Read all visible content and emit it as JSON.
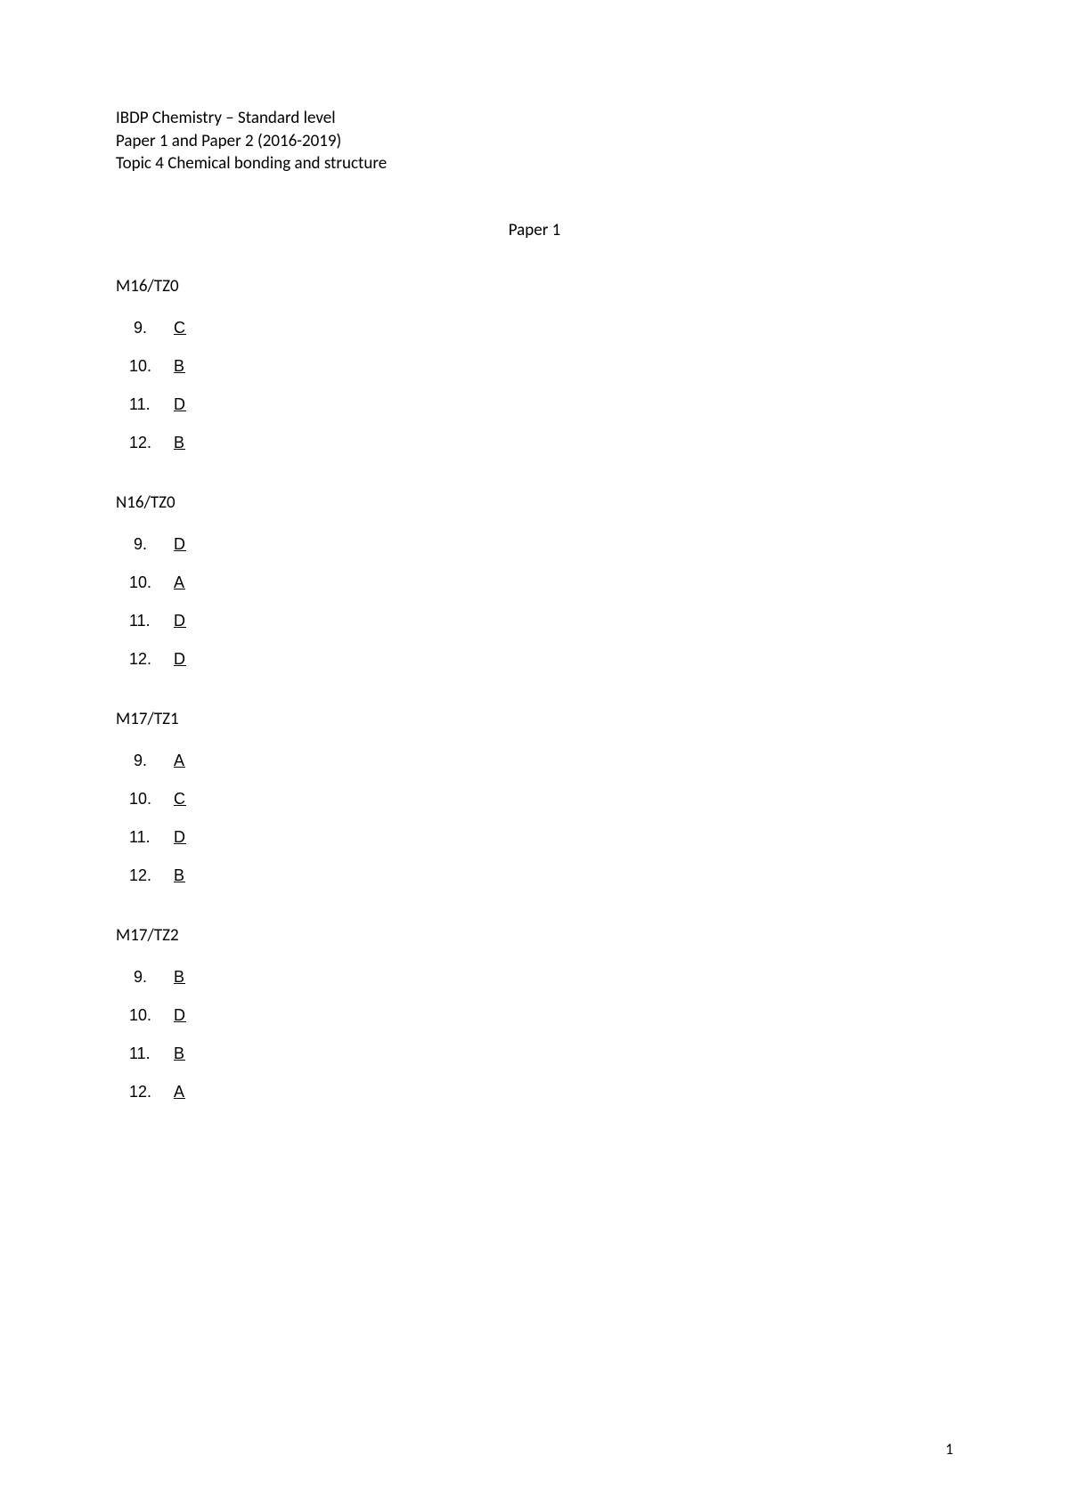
{
  "header": {
    "line1": "IBDP Chemistry – Standard level",
    "line2": "Paper 1 and Paper 2 (2016-2019)",
    "line3": "Topic 4 Chemical bonding and structure"
  },
  "paper_title": "Paper 1",
  "sections": [
    {
      "title": "M16/TZ0",
      "answers": [
        {
          "num": "9.",
          "val": "  C  "
        },
        {
          "num": "10.",
          "val": "  B  "
        },
        {
          "num": "11.",
          "val": "  D  "
        },
        {
          "num": "12.",
          "val": "  B  "
        }
      ]
    },
    {
      "title": "N16/TZ0",
      "answers": [
        {
          "num": "9.",
          "val": "  D  "
        },
        {
          "num": "10.",
          "val": "  A  "
        },
        {
          "num": "11.",
          "val": "  D  "
        },
        {
          "num": "12.",
          "val": "  D  "
        }
      ]
    },
    {
      "title": "M17/TZ1",
      "answers": [
        {
          "num": "9.",
          "val": "  A  "
        },
        {
          "num": "10.",
          "val": "  C  "
        },
        {
          "num": "11.",
          "val": "  D  "
        },
        {
          "num": "12.",
          "val": "  B  "
        }
      ]
    },
    {
      "title": "M17/TZ2",
      "answers": [
        {
          "num": "9.",
          "val": "  B  "
        },
        {
          "num": "10.",
          "val": "  D  "
        },
        {
          "num": "11.",
          "val": "  B  "
        },
        {
          "num": "12.",
          "val": "  A  "
        }
      ]
    }
  ],
  "page_number": "1",
  "colors": {
    "background": "#ffffff",
    "text": "#000000"
  },
  "typography": {
    "header_fontsize": 19,
    "body_fontsize": 18,
    "font_family": "Calibri, Arial, sans-serif"
  }
}
